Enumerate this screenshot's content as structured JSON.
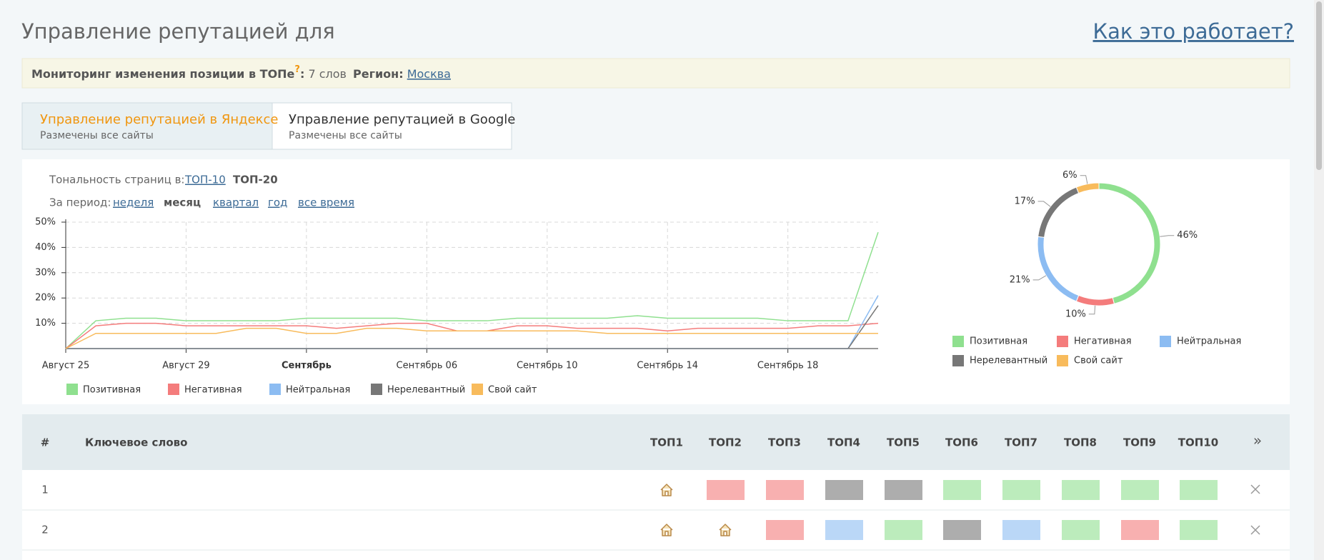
{
  "header": {
    "title": "Управление репутацией для",
    "help_link": "Как это работает?"
  },
  "monitor": {
    "label": "Мониторинг изменения позиции в ТОПе",
    "hint": "?",
    "separator": ":",
    "count": "7 слов",
    "region_label": "Регион:",
    "region": "Москва"
  },
  "tabs": [
    {
      "title": "Управление репутацией в Яндексе",
      "subtitle": "Размечены все сайты"
    },
    {
      "title": "Управление репутацией в Google",
      "subtitle": "Размечены все сайты"
    }
  ],
  "filters": {
    "tonality_label": "Тональность страниц в:",
    "tonality_options": [
      "ТОП-10",
      "ТОП-20"
    ],
    "period_label": "За период:",
    "periods": [
      "неделя",
      "месяц",
      "квартал",
      "год",
      "все время"
    ]
  },
  "chart_data": [
    {
      "type": "line",
      "categories": [
        "Август 25",
        null,
        null,
        null,
        "Август 29",
        null,
        null,
        null,
        "Сентябрь",
        null,
        null,
        null,
        "Сентябрь 06",
        null,
        null,
        null,
        "Сентябрь 10",
        null,
        null,
        null,
        "Сентябрь 14",
        null,
        null,
        null,
        "Сентябрь 18",
        null,
        null,
        null
      ],
      "ylim": [
        0,
        50
      ],
      "yticks": [
        {
          "value": 10,
          "label": "10%"
        },
        {
          "value": 20,
          "label": "20%"
        },
        {
          "value": 30,
          "label": "30%"
        },
        {
          "value": 40,
          "label": "40%"
        },
        {
          "value": 50,
          "label": "50%"
        }
      ],
      "grid": true,
      "series": [
        {
          "name": "Позитивная",
          "color": "#8fe08f",
          "values": [
            0,
            11,
            12,
            12,
            11,
            11,
            11,
            11,
            12,
            12,
            12,
            12,
            11,
            11,
            11,
            12,
            12,
            12,
            12,
            13,
            12,
            12,
            12,
            12,
            11,
            11,
            11,
            46
          ]
        },
        {
          "name": "Негативная",
          "color": "#f47c7c",
          "values": [
            0,
            9,
            10,
            10,
            9,
            9,
            9,
            9,
            9,
            8,
            9,
            10,
            10,
            7,
            7,
            9,
            9,
            8,
            8,
            8,
            7,
            8,
            8,
            8,
            8,
            9,
            9,
            10
          ]
        },
        {
          "name": "Нейтральная",
          "color": "#8cbcf2",
          "values": [
            0,
            0,
            0,
            0,
            0,
            0,
            0,
            0,
            0,
            0,
            0,
            0,
            0,
            0,
            0,
            0,
            0,
            0,
            0,
            0,
            0,
            0,
            0,
            0,
            0,
            0,
            0,
            21
          ]
        },
        {
          "name": "Нерелевантный",
          "color": "#777777",
          "values": [
            0,
            0,
            0,
            0,
            0,
            0,
            0,
            0,
            0,
            0,
            0,
            0,
            0,
            0,
            0,
            0,
            0,
            0,
            0,
            0,
            0,
            0,
            0,
            0,
            0,
            0,
            0,
            17
          ]
        },
        {
          "name": "Свой сайт",
          "color": "#f8bb5c",
          "values": [
            0,
            6,
            6,
            6,
            6,
            6,
            8,
            8,
            6,
            6,
            8,
            8,
            7,
            7,
            7,
            7,
            7,
            7,
            6,
            6,
            6,
            6,
            6,
            6,
            6,
            6,
            6,
            6
          ]
        }
      ]
    },
    {
      "type": "pie",
      "categories": [
        "Позитивная",
        "Негативная",
        "Нейтральная",
        "Нерелевантный",
        "Свой сайт"
      ],
      "values": [
        46,
        10,
        21,
        17,
        6
      ],
      "value_labels": [
        "46%",
        "10%",
        "21%",
        "17%",
        "6%"
      ],
      "colors": [
        "#8fe08f",
        "#f47c7c",
        "#8cbcf2",
        "#777777",
        "#f8bb5c"
      ]
    }
  ],
  "table": {
    "headers": {
      "number": "#",
      "keyword": "Ключевое слово",
      "tops": [
        "ТОП1",
        "ТОП2",
        "ТОП3",
        "ТОП4",
        "ТОП5",
        "ТОП6",
        "ТОП7",
        "ТОП8",
        "ТОП9",
        "ТОП10"
      ],
      "more": "»"
    },
    "rows": [
      {
        "number": "1",
        "cells": [
          4,
          1,
          1,
          3,
          3,
          0,
          0,
          0,
          0,
          0
        ]
      },
      {
        "number": "2",
        "cells": [
          4,
          4,
          1,
          2,
          0,
          3,
          2,
          0,
          1,
          0
        ]
      }
    ]
  }
}
